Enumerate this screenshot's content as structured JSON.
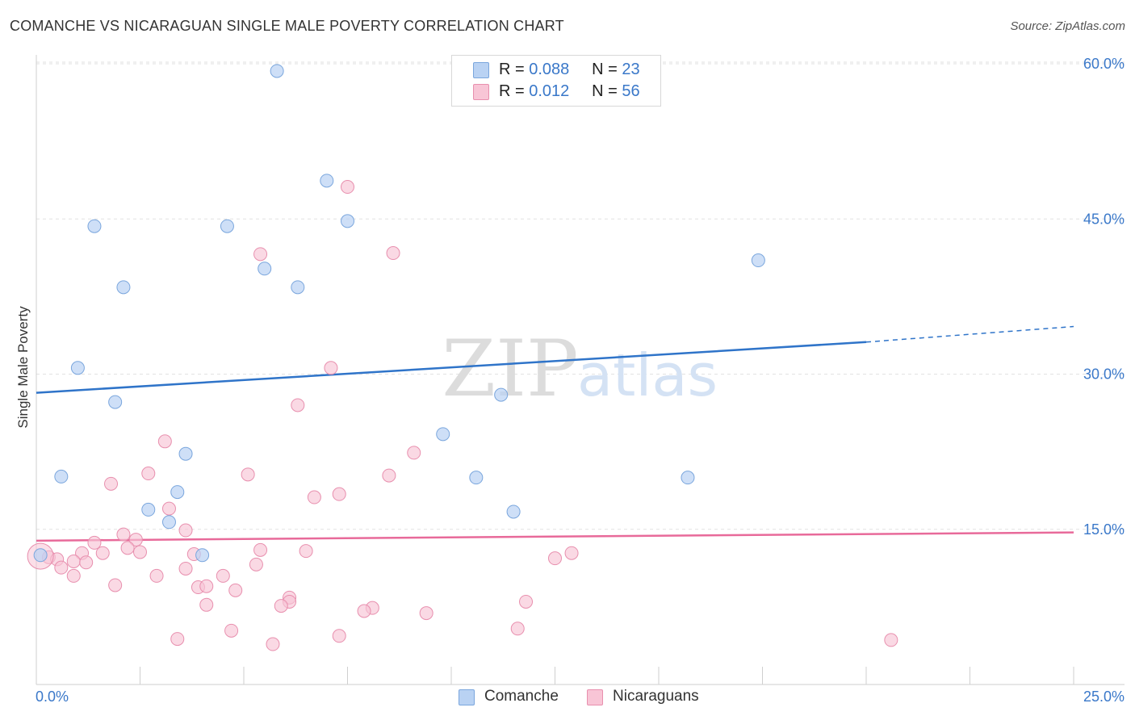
{
  "title": "COMANCHE VS NICARAGUAN SINGLE MALE POVERTY CORRELATION CHART",
  "source": "Source: ZipAtlas.com",
  "legend": {
    "rows": [
      {
        "r_label": "R =",
        "r_value": "0.088",
        "n_label": "N =",
        "n_value": "23"
      },
      {
        "r_label": "R =",
        "r_value": "0.012",
        "n_label": "N =",
        "n_value": "56"
      }
    ]
  },
  "bottom_legend": [
    "Comanche",
    "Nicaraguans"
  ],
  "watermark": {
    "zip": "ZIP",
    "atlas": "atlas"
  },
  "colors": {
    "comanche_fill": "#b9d2f3",
    "comanche_stroke": "#7aa6dd",
    "comanche_line": "#2f74c9",
    "nicaraguan_fill": "#f8c5d6",
    "nicaraguan_stroke": "#e88fae",
    "nicaraguan_line": "#e86a9a",
    "tick_label": "#3a78c9"
  },
  "chart_data": {
    "type": "scatter",
    "title": "COMANCHE VS NICARAGUAN SINGLE MALE POVERTY CORRELATION CHART",
    "xlabel": "",
    "ylabel": "Single Male Poverty",
    "xlim": [
      0,
      25
    ],
    "ylim": [
      0,
      60
    ],
    "x_tick_labels": [
      "0.0%",
      "25.0%"
    ],
    "y_ticks": [
      15,
      30,
      45,
      60
    ],
    "y_tick_labels": [
      "15.0%",
      "30.0%",
      "45.0%",
      "60.0%"
    ],
    "grid": true,
    "series": [
      {
        "name": "Comanche",
        "points": [
          [
            5.8,
            59.3
          ],
          [
            7.0,
            48.7
          ],
          [
            7.5,
            44.8
          ],
          [
            1.4,
            44.3
          ],
          [
            4.6,
            44.3
          ],
          [
            17.4,
            41.0
          ],
          [
            5.5,
            40.2
          ],
          [
            2.1,
            38.4
          ],
          [
            6.3,
            38.4
          ],
          [
            1.0,
            30.6
          ],
          [
            1.9,
            27.3
          ],
          [
            11.2,
            28.0
          ],
          [
            9.8,
            24.2
          ],
          [
            3.6,
            22.3
          ],
          [
            0.6,
            20.1
          ],
          [
            10.6,
            20.0
          ],
          [
            15.7,
            20.0
          ],
          [
            3.4,
            18.6
          ],
          [
            2.7,
            16.9
          ],
          [
            11.5,
            16.7
          ],
          [
            3.2,
            15.7
          ],
          [
            4.0,
            12.5
          ],
          [
            0.1,
            12.5
          ]
        ],
        "trend": {
          "x": [
            0,
            20
          ],
          "y": [
            28.2,
            33.1
          ]
        },
        "trend_dashed": {
          "x": [
            20,
            25
          ],
          "y": [
            33.1,
            34.6
          ]
        }
      },
      {
        "name": "Nicaraguans",
        "points": [
          [
            7.5,
            48.1
          ],
          [
            8.6,
            41.7
          ],
          [
            5.4,
            41.6
          ],
          [
            7.1,
            30.6
          ],
          [
            6.3,
            27.0
          ],
          [
            3.1,
            23.5
          ],
          [
            9.1,
            22.4
          ],
          [
            2.7,
            20.4
          ],
          [
            5.1,
            20.3
          ],
          [
            8.5,
            20.2
          ],
          [
            1.8,
            19.4
          ],
          [
            7.3,
            18.4
          ],
          [
            6.7,
            18.1
          ],
          [
            3.2,
            17.0
          ],
          [
            3.6,
            14.9
          ],
          [
            2.1,
            14.5
          ],
          [
            2.4,
            14.0
          ],
          [
            1.4,
            13.7
          ],
          [
            2.2,
            13.2
          ],
          [
            5.4,
            13.0
          ],
          [
            6.5,
            12.9
          ],
          [
            2.5,
            12.8
          ],
          [
            1.6,
            12.7
          ],
          [
            1.1,
            12.7
          ],
          [
            3.8,
            12.6
          ],
          [
            12.9,
            12.7
          ],
          [
            12.5,
            12.2
          ],
          [
            0.3,
            12.3
          ],
          [
            0.5,
            12.1
          ],
          [
            0.9,
            11.9
          ],
          [
            1.2,
            11.8
          ],
          [
            5.3,
            11.6
          ],
          [
            0.6,
            11.3
          ],
          [
            3.6,
            11.2
          ],
          [
            4.5,
            10.5
          ],
          [
            2.9,
            10.5
          ],
          [
            0.9,
            10.5
          ],
          [
            3.9,
            9.4
          ],
          [
            4.1,
            9.5
          ],
          [
            4.8,
            9.1
          ],
          [
            1.9,
            9.6
          ],
          [
            6.1,
            8.4
          ],
          [
            6.1,
            8.0
          ],
          [
            5.9,
            7.6
          ],
          [
            4.1,
            7.7
          ],
          [
            8.1,
            7.4
          ],
          [
            7.9,
            7.1
          ],
          [
            9.4,
            6.9
          ],
          [
            11.8,
            8.0
          ],
          [
            11.6,
            5.4
          ],
          [
            4.7,
            5.2
          ],
          [
            7.3,
            4.7
          ],
          [
            3.4,
            4.4
          ],
          [
            5.7,
            3.9
          ],
          [
            20.6,
            4.3
          ],
          [
            0.1,
            12.4
          ]
        ],
        "trend": {
          "x": [
            0,
            25
          ],
          "y": [
            13.9,
            14.7
          ]
        }
      }
    ]
  }
}
